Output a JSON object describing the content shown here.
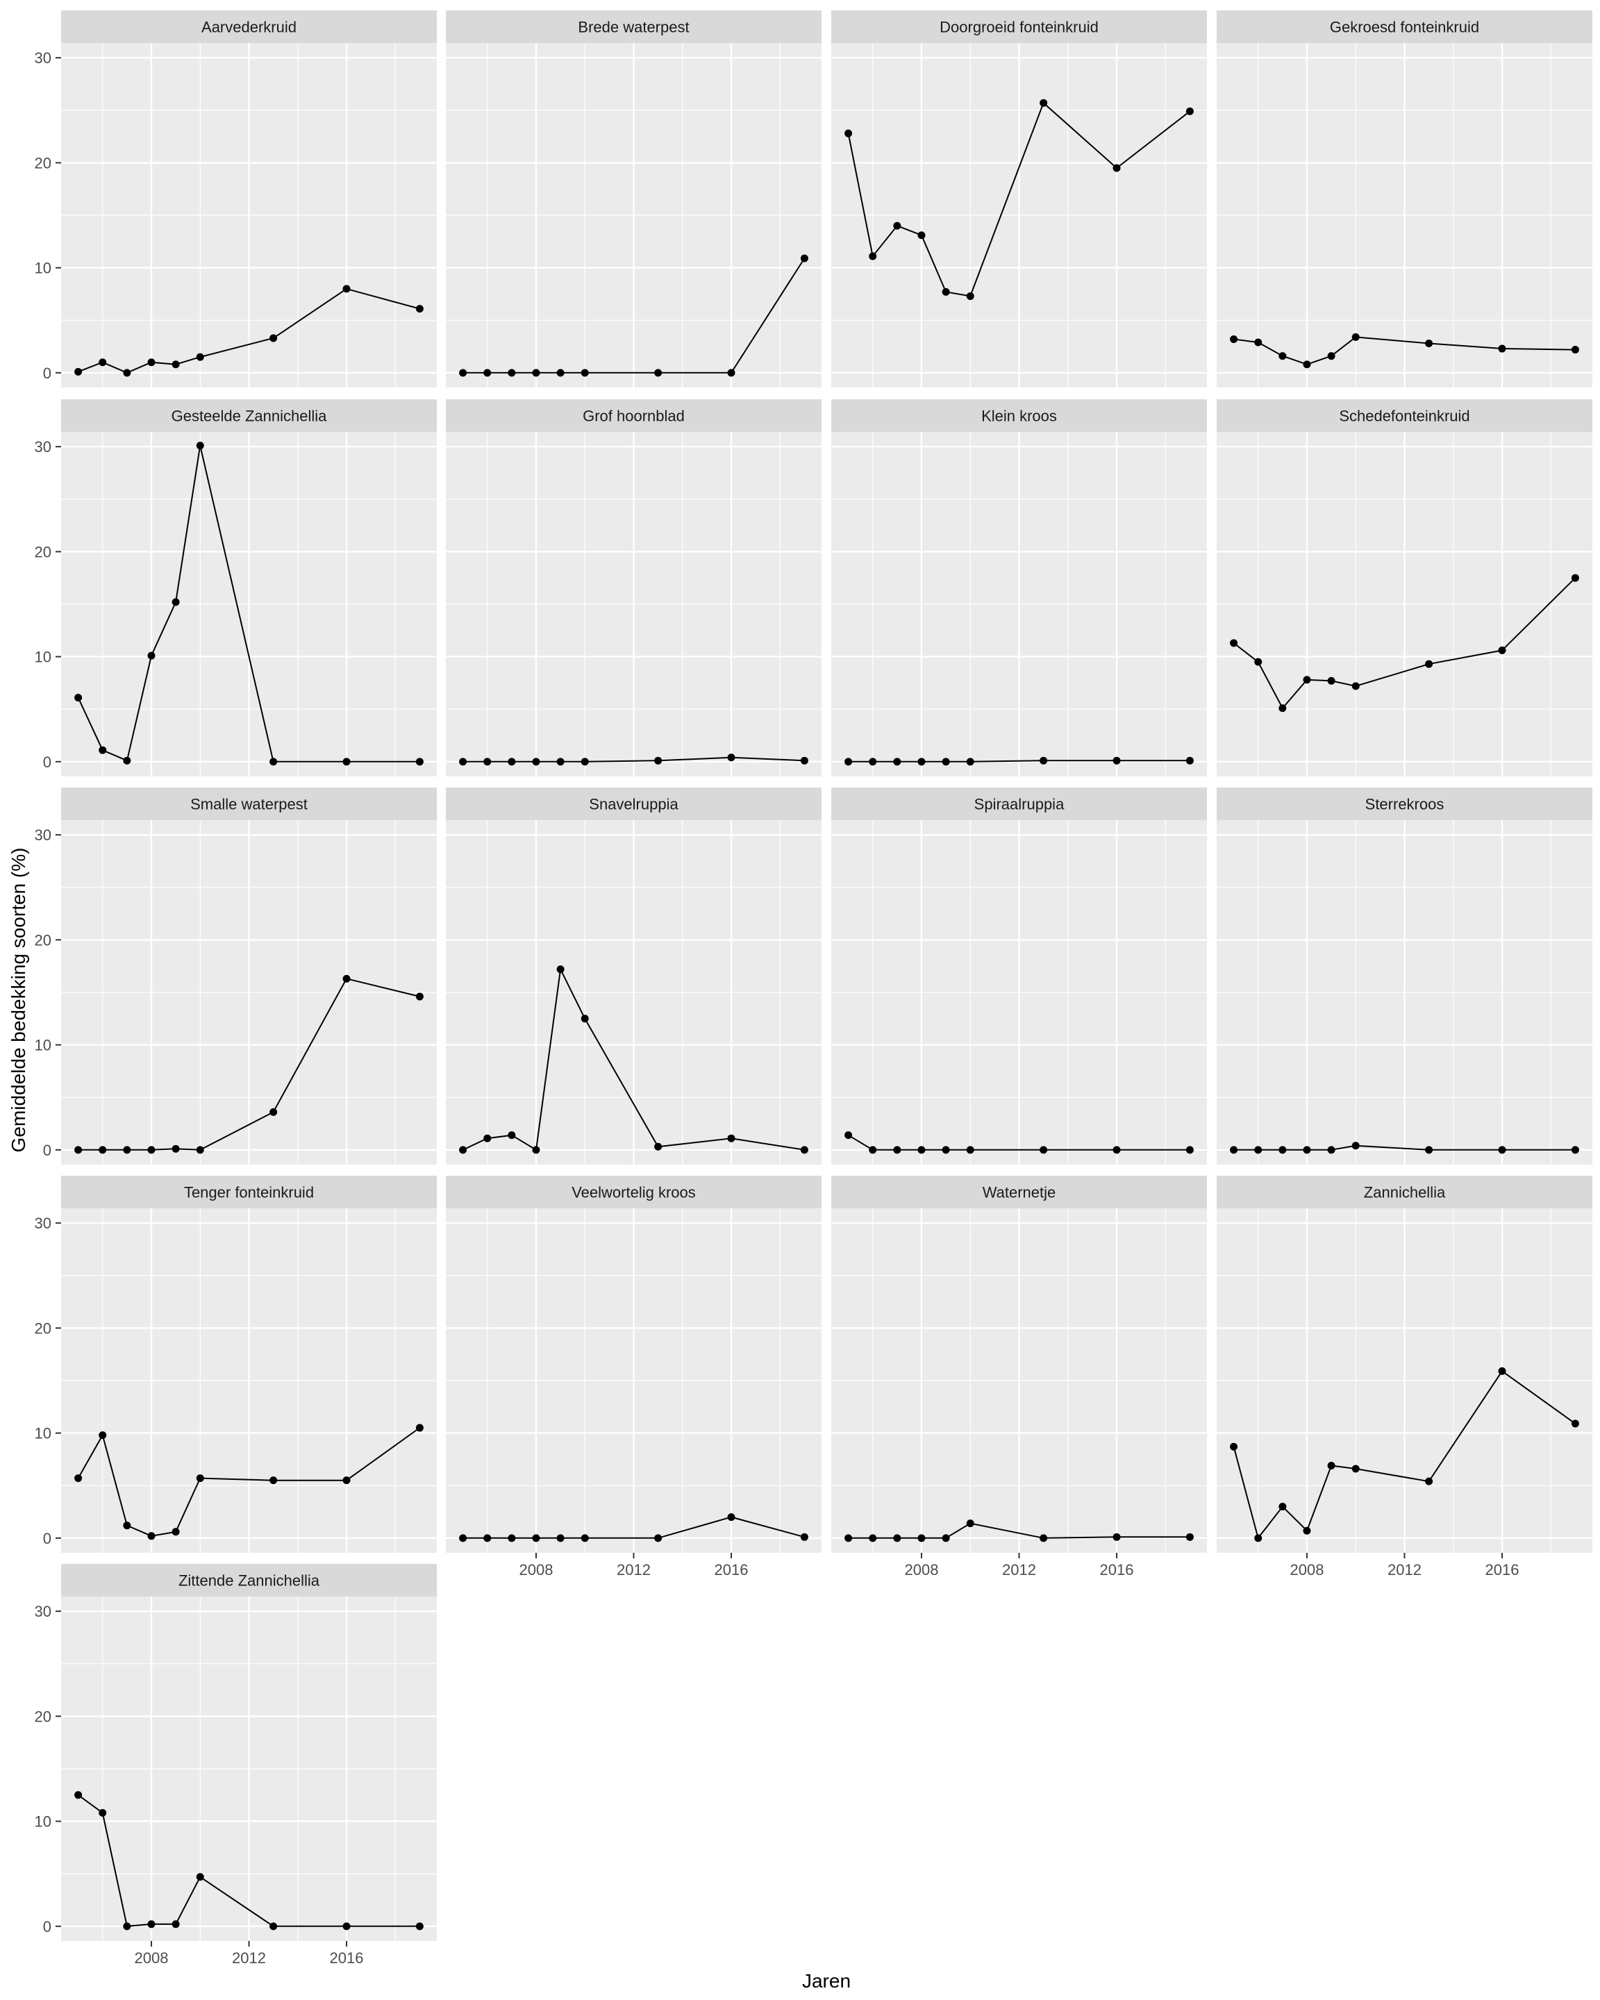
{
  "chart_data": {
    "type": "line",
    "facet_layout": "wrap",
    "ncol": 4,
    "xlabel": "Jaren",
    "ylabel": "Gemiddelde bedekking soorten (%)",
    "xlim": [
      2004.3,
      2019.7
    ],
    "ylim": [
      -1.4,
      31.4
    ],
    "x_ticks": [
      2008,
      2012,
      2016
    ],
    "x_tick_labels": [
      "2008",
      "2012",
      "2016"
    ],
    "y_ticks": [
      0,
      10,
      20,
      30
    ],
    "y_tick_labels": [
      "0",
      "10",
      "20",
      "30"
    ],
    "grid": true,
    "x": [
      2005,
      2006,
      2007,
      2008,
      2009,
      2010,
      2013,
      2016,
      2019
    ],
    "series": [
      {
        "name": "Aarvederkruid",
        "values": [
          0.1,
          1.0,
          0.0,
          1.0,
          0.8,
          1.5,
          3.3,
          8.0,
          6.1
        ]
      },
      {
        "name": "Brede waterpest",
        "values": [
          0.0,
          0.0,
          0.0,
          0.0,
          0.0,
          0.0,
          0.0,
          0.0,
          10.9
        ]
      },
      {
        "name": "Doorgroeid fonteinkruid",
        "values": [
          22.8,
          11.1,
          14.0,
          13.1,
          7.7,
          7.3,
          25.7,
          19.5,
          24.9
        ]
      },
      {
        "name": "Gekroesd fonteinkruid",
        "values": [
          3.2,
          2.9,
          1.6,
          0.8,
          1.6,
          3.4,
          2.8,
          2.3,
          2.2
        ]
      },
      {
        "name": "Gesteelde Zannichellia",
        "values": [
          6.1,
          1.1,
          0.1,
          10.1,
          15.2,
          30.1,
          0.0,
          0.0,
          0.0
        ]
      },
      {
        "name": "Grof hoornblad",
        "values": [
          0.0,
          0.0,
          0.0,
          0.0,
          0.0,
          0.0,
          0.1,
          0.4,
          0.1
        ]
      },
      {
        "name": "Klein kroos",
        "values": [
          0.0,
          0.0,
          0.0,
          0.0,
          0.0,
          0.0,
          0.1,
          0.1,
          0.1
        ]
      },
      {
        "name": "Schedefonteinkruid",
        "values": [
          11.3,
          9.5,
          5.1,
          7.8,
          7.7,
          7.2,
          9.3,
          10.6,
          17.5
        ]
      },
      {
        "name": "Smalle waterpest",
        "values": [
          0.0,
          0.0,
          0.0,
          0.0,
          0.1,
          0.0,
          3.6,
          16.3,
          14.6
        ]
      },
      {
        "name": "Snavelruppia",
        "values": [
          0.0,
          1.1,
          1.4,
          0.0,
          17.2,
          12.5,
          0.3,
          1.1,
          0.0
        ]
      },
      {
        "name": "Spiraalruppia",
        "values": [
          1.4,
          0.0,
          0.0,
          0.0,
          0.0,
          0.0,
          0.0,
          0.0,
          0.0
        ]
      },
      {
        "name": "Sterrekroos",
        "values": [
          0.0,
          0.0,
          0.0,
          0.0,
          0.0,
          0.4,
          0.0,
          0.0,
          0.0
        ]
      },
      {
        "name": "Tenger fonteinkruid",
        "values": [
          5.7,
          9.8,
          1.2,
          0.2,
          0.6,
          5.7,
          5.5,
          5.5,
          10.5
        ]
      },
      {
        "name": "Veelwortelig kroos",
        "values": [
          0.0,
          0.0,
          0.0,
          0.0,
          0.0,
          0.0,
          0.0,
          2.0,
          0.1
        ]
      },
      {
        "name": "Waternetje",
        "values": [
          0.0,
          0.0,
          0.0,
          0.0,
          0.0,
          1.4,
          0.0,
          0.1,
          0.1
        ]
      },
      {
        "name": "Zannichellia",
        "values": [
          8.7,
          0.0,
          3.0,
          0.7,
          6.9,
          6.6,
          5.4,
          15.9,
          10.9
        ]
      },
      {
        "name": "Zittende Zannichellia",
        "values": [
          12.5,
          10.8,
          0.0,
          0.2,
          0.2,
          4.7,
          0.0,
          0.0,
          0.0
        ]
      }
    ]
  }
}
